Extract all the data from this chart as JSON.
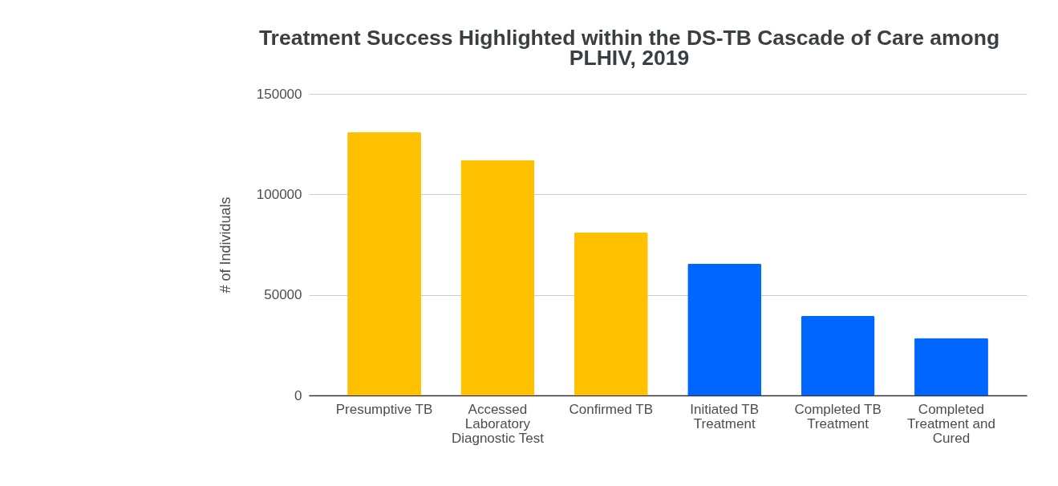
{
  "chart_data": {
    "type": "bar",
    "title": "Treatment Success Highlighted within the DS-TB Cascade of Care among PLHIV, 2019",
    "ylabel": "# of Individuals",
    "categories": [
      "Presumptive TB",
      "Accessed Laboratory Diagnostic Test",
      "Confirmed TB",
      "Initiated TB Treatment",
      "Completed TB Treatment",
      "Completed Treatment and Cured"
    ],
    "values": [
      131000,
      117000,
      81000,
      65500,
      39500,
      28500
    ],
    "colors": [
      "#ffc000",
      "#ffc000",
      "#ffc000",
      "#0066ff",
      "#0066ff",
      "#0066ff"
    ],
    "ylim": [
      0,
      150000
    ],
    "yticks": [
      0,
      50000,
      100000,
      150000
    ],
    "grid": "y"
  }
}
